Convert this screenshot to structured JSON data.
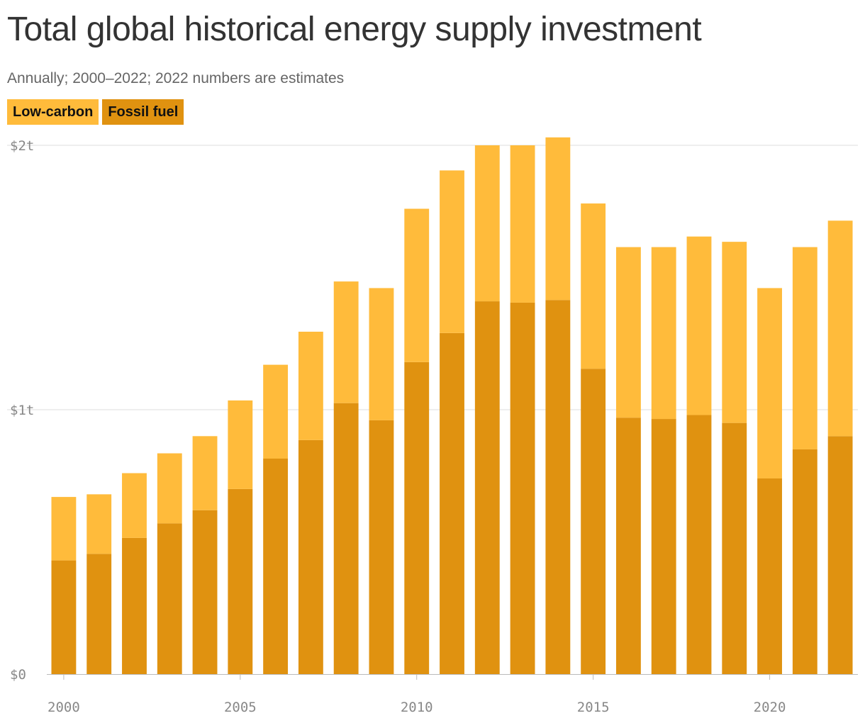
{
  "chart_data": {
    "type": "bar",
    "stacked": true,
    "title": "Total global historical energy supply investment",
    "subtitle": "Annually; 2000–2022; 2022 numbers are estimates",
    "x": [
      2000,
      2001,
      2002,
      2003,
      2004,
      2005,
      2006,
      2007,
      2008,
      2009,
      2010,
      2011,
      2012,
      2013,
      2014,
      2015,
      2016,
      2017,
      2018,
      2019,
      2020,
      2021,
      2022
    ],
    "series": [
      {
        "name": "Fossil fuel",
        "color": "#e09210",
        "values": [
          0.43,
          0.455,
          0.515,
          0.57,
          0.62,
          0.7,
          0.815,
          0.885,
          1.025,
          0.96,
          1.18,
          1.29,
          1.41,
          1.405,
          1.415,
          1.155,
          0.97,
          0.965,
          0.98,
          0.95,
          0.74,
          0.85,
          0.9
        ]
      },
      {
        "name": "Low-carbon",
        "color": "#ffbb3b",
        "values": [
          0.24,
          0.225,
          0.245,
          0.265,
          0.28,
          0.335,
          0.355,
          0.41,
          0.46,
          0.5,
          0.58,
          0.615,
          0.59,
          0.595,
          0.615,
          0.625,
          0.645,
          0.65,
          0.675,
          0.685,
          0.72,
          0.765,
          0.815
        ]
      }
    ],
    "ylim": [
      0,
      2
    ],
    "yticks": [
      {
        "value": 0,
        "label": "$0"
      },
      {
        "value": 1,
        "label": "$1t"
      },
      {
        "value": 2,
        "label": "$2t"
      }
    ],
    "xticks": [
      2000,
      2005,
      2010,
      2015,
      2020
    ],
    "xlim": [
      1999.6,
      2022.5
    ],
    "xlabel": "",
    "ylabel": "",
    "grid": "horizontal",
    "legend": {
      "placement": "top-left",
      "items": [
        {
          "label": "Low-carbon",
          "color": "#ffbb3b"
        },
        {
          "label": "Fossil fuel",
          "color": "#e09210"
        }
      ]
    }
  }
}
